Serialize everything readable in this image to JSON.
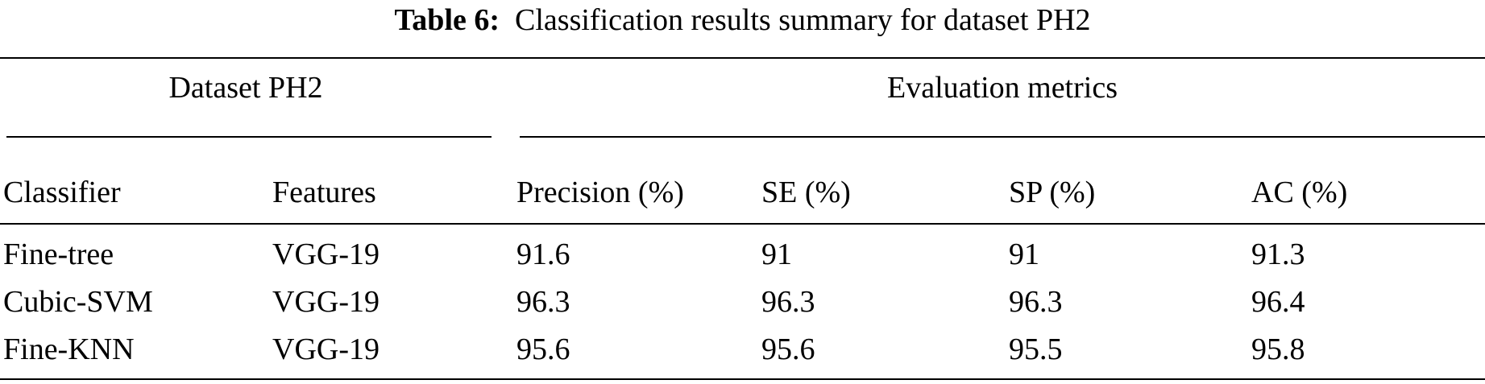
{
  "table": {
    "caption_label": "Table 6:",
    "caption_text": "Classification results summary for dataset PH2",
    "group_headers": [
      "Dataset PH2",
      "Evaluation metrics"
    ],
    "columns": [
      "Classifier",
      "Features",
      "Precision (%)",
      "SE (%)",
      "SP (%)",
      "AC (%)"
    ],
    "rows": [
      [
        "Fine-tree",
        "VGG-19",
        "91.6",
        "91",
        "91",
        "91.3"
      ],
      [
        "Cubic-SVM",
        "VGG-19",
        "96.3",
        "96.3",
        "96.3",
        "96.4"
      ],
      [
        "Fine-KNN",
        "VGG-19",
        "95.6",
        "95.6",
        "95.5",
        "95.8"
      ]
    ]
  }
}
